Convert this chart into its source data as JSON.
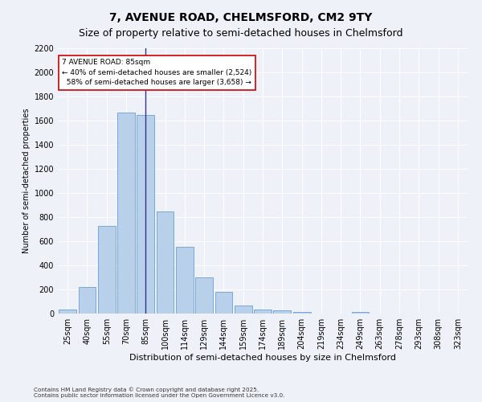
{
  "title": "7, AVENUE ROAD, CHELMSFORD, CM2 9TY",
  "subtitle": "Size of property relative to semi-detached houses in Chelmsford",
  "xlabel": "Distribution of semi-detached houses by size in Chelmsford",
  "ylabel": "Number of semi-detached properties",
  "footnote1": "Contains HM Land Registry data © Crown copyright and database right 2025.",
  "footnote2": "Contains public sector information licensed under the Open Government Licence v3.0.",
  "bar_labels": [
    "25sqm",
    "40sqm",
    "55sqm",
    "70sqm",
    "85sqm",
    "100sqm",
    "114sqm",
    "129sqm",
    "144sqm",
    "159sqm",
    "174sqm",
    "189sqm",
    "204sqm",
    "219sqm",
    "234sqm",
    "249sqm",
    "263sqm",
    "278sqm",
    "293sqm",
    "308sqm",
    "323sqm"
  ],
  "bar_values": [
    35,
    220,
    730,
    1670,
    1650,
    845,
    555,
    300,
    180,
    65,
    35,
    25,
    15,
    0,
    0,
    15,
    0,
    0,
    0,
    0,
    0
  ],
  "bar_color": "#b8d0ea",
  "bar_edge_color": "#6a9fd8",
  "highlight_index": 4,
  "highlight_line_color": "#333388",
  "property_label": "7 AVENUE ROAD: 85sqm",
  "smaller_pct": "40%",
  "smaller_count": "2,524",
  "larger_pct": "58%",
  "larger_count": "3,658",
  "annotation_box_color": "#ffffff",
  "annotation_box_edge_color": "#cc0000",
  "ylim": [
    0,
    2200
  ],
  "yticks": [
    0,
    200,
    400,
    600,
    800,
    1000,
    1200,
    1400,
    1600,
    1800,
    2000,
    2200
  ],
  "bg_color": "#eef2f8",
  "title_fontsize": 10,
  "subtitle_fontsize": 9,
  "tick_fontsize": 7,
  "ylabel_fontsize": 7,
  "xlabel_fontsize": 8
}
